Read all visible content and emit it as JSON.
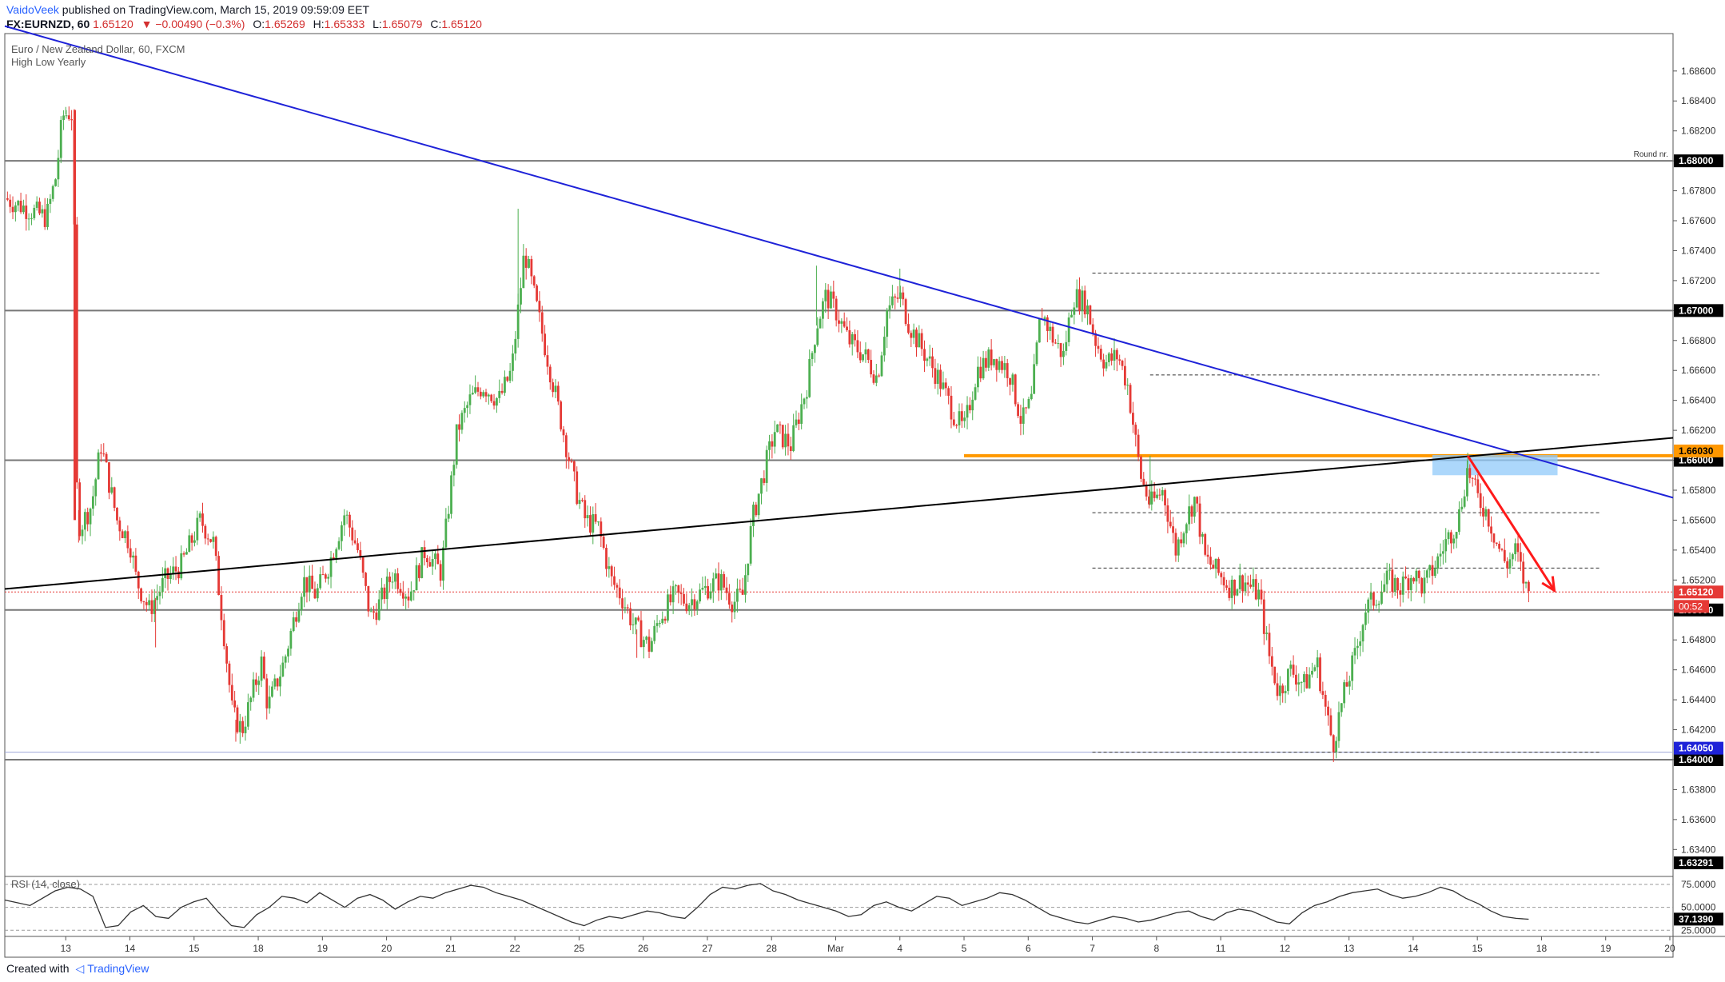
{
  "header": {
    "author": "VaidoVeek",
    "published_text": "published on TradingView.com, March 15, 2019 09:59:09 EET",
    "symbol": "FX:EURNZD, 60",
    "last": "1.65120",
    "change": "−0.00490 (−0.3%)",
    "open_label": "O:",
    "open": "1.65269",
    "high_label": "H:",
    "high": "1.65333",
    "low_label": "L:",
    "low": "1.65079",
    "close_label": "C:",
    "close": "1.65120"
  },
  "legend": {
    "title": "Euro / New Zealand Dollar, 60, FXCM",
    "indicator": "High Low Yearly"
  },
  "footer": {
    "created_with": "Created with",
    "brand": "TradingView"
  },
  "colors": {
    "up": "#4caf50",
    "down": "#e53935",
    "trendline": "#1e22d8",
    "support_line": "#000000",
    "orange_level": "#ff9800",
    "highlight_zone": "#90caf9",
    "arrow": "#ff1a1a",
    "rsi": "#333333"
  },
  "chart_data": {
    "type": "candlestick",
    "title": "Euro / New Zealand Dollar, 60, FXCM",
    "timeframe": "60",
    "y_axis": {
      "ylim": [
        1.6322,
        1.6885
      ],
      "ticks": [
        "1.68600",
        "1.68400",
        "1.68200",
        "1.68000",
        "1.67800",
        "1.67600",
        "1.67400",
        "1.67200",
        "1.67000",
        "1.66800",
        "1.66600",
        "1.66400",
        "1.66200",
        "1.66000",
        "1.65800",
        "1.65600",
        "1.65400",
        "1.65200",
        "1.65000",
        "1.64800",
        "1.64600",
        "1.64400",
        "1.64200",
        "1.64000",
        "1.63800",
        "1.63600",
        "1.63400"
      ]
    },
    "x_axis": {
      "labels": [
        "13",
        "14",
        "15",
        "18",
        "19",
        "20",
        "21",
        "22",
        "25",
        "26",
        "27",
        "28",
        "Mar",
        "4",
        "5",
        "6",
        "7",
        "8",
        "11",
        "12",
        "13",
        "14",
        "15",
        "18",
        "19",
        "20"
      ],
      "day_index": [
        0,
        1,
        2,
        3,
        4,
        5,
        6,
        7,
        8,
        9,
        10,
        11,
        12,
        13,
        14,
        15,
        16,
        17,
        18,
        19,
        20,
        21,
        22,
        23,
        24,
        25
      ],
      "range": [
        -0.95,
        25.05
      ]
    },
    "price_path": [
      [
        -0.95,
        1.6775
      ],
      [
        -0.7,
        1.677
      ],
      [
        -0.3,
        1.6762
      ],
      [
        -0.15,
        1.679
      ],
      [
        -0.05,
        1.683
      ],
      [
        0.05,
        1.6832
      ],
      [
        0.12,
        1.683
      ],
      [
        0.16,
        1.659
      ],
      [
        0.22,
        1.6555
      ],
      [
        0.4,
        1.657
      ],
      [
        0.55,
        1.661
      ],
      [
        0.8,
        1.656
      ],
      [
        1.0,
        1.6545
      ],
      [
        1.1,
        1.652
      ],
      [
        1.3,
        1.65
      ],
      [
        1.55,
        1.652
      ],
      [
        1.8,
        1.653
      ],
      [
        2.1,
        1.656
      ],
      [
        2.3,
        1.6545
      ],
      [
        2.45,
        1.649
      ],
      [
        2.6,
        1.643
      ],
      [
        2.75,
        1.642
      ],
      [
        3.05,
        1.6465
      ],
      [
        3.15,
        1.6435
      ],
      [
        3.4,
        1.6465
      ],
      [
        3.7,
        1.652
      ],
      [
        3.9,
        1.651
      ],
      [
        4.1,
        1.653
      ],
      [
        4.35,
        1.6565
      ],
      [
        4.55,
        1.654
      ],
      [
        4.75,
        1.6495
      ],
      [
        4.9,
        1.6505
      ],
      [
        5.1,
        1.6525
      ],
      [
        5.35,
        1.651
      ],
      [
        5.6,
        1.654
      ],
      [
        5.85,
        1.6525
      ],
      [
        6.1,
        1.662
      ],
      [
        6.3,
        1.664
      ],
      [
        6.5,
        1.665
      ],
      [
        6.75,
        1.664
      ],
      [
        6.95,
        1.666
      ],
      [
        7.05,
        1.67
      ],
      [
        7.15,
        1.674
      ],
      [
        7.35,
        1.67
      ],
      [
        7.6,
        1.665
      ],
      [
        7.85,
        1.66
      ],
      [
        7.95,
        1.658
      ],
      [
        8.1,
        1.656
      ],
      [
        8.3,
        1.6555
      ],
      [
        8.5,
        1.652
      ],
      [
        8.65,
        1.651
      ],
      [
        8.85,
        1.649
      ],
      [
        9.1,
        1.6475
      ],
      [
        9.25,
        1.6495
      ],
      [
        9.5,
        1.651
      ],
      [
        9.7,
        1.6505
      ],
      [
        10.0,
        1.6515
      ],
      [
        10.2,
        1.652
      ],
      [
        10.4,
        1.6505
      ],
      [
        10.55,
        1.651
      ],
      [
        10.7,
        1.656
      ],
      [
        10.9,
        1.6595
      ],
      [
        11.05,
        1.662
      ],
      [
        11.3,
        1.661
      ],
      [
        11.55,
        1.665
      ],
      [
        11.7,
        1.669
      ],
      [
        11.85,
        1.671
      ],
      [
        12.0,
        1.67
      ],
      [
        12.2,
        1.668
      ],
      [
        12.45,
        1.667
      ],
      [
        12.65,
        1.6655
      ],
      [
        12.8,
        1.67
      ],
      [
        13.0,
        1.671
      ],
      [
        13.15,
        1.669
      ],
      [
        13.4,
        1.667
      ],
      [
        13.6,
        1.6655
      ],
      [
        13.85,
        1.663
      ],
      [
        14.0,
        1.662
      ],
      [
        14.2,
        1.666
      ],
      [
        14.45,
        1.667
      ],
      [
        14.7,
        1.666
      ],
      [
        14.9,
        1.6625
      ],
      [
        15.05,
        1.664
      ],
      [
        15.2,
        1.67
      ],
      [
        15.4,
        1.668
      ],
      [
        15.55,
        1.667
      ],
      [
        15.7,
        1.671
      ],
      [
        15.9,
        1.6705
      ],
      [
        16.05,
        1.668
      ],
      [
        16.2,
        1.6665
      ],
      [
        16.4,
        1.667
      ],
      [
        16.55,
        1.665
      ],
      [
        16.65,
        1.662
      ],
      [
        16.75,
        1.659
      ],
      [
        16.9,
        1.657
      ],
      [
        17.1,
        1.658
      ],
      [
        17.3,
        1.654
      ],
      [
        17.45,
        1.656
      ],
      [
        17.6,
        1.6575
      ],
      [
        17.75,
        1.6535
      ],
      [
        17.95,
        1.6525
      ],
      [
        18.15,
        1.6515
      ],
      [
        18.35,
        1.652
      ],
      [
        18.6,
        1.651
      ],
      [
        18.75,
        1.647
      ],
      [
        18.9,
        1.6445
      ],
      [
        19.1,
        1.646
      ],
      [
        19.3,
        1.645
      ],
      [
        19.5,
        1.6465
      ],
      [
        19.65,
        1.643
      ],
      [
        19.75,
        1.641
      ],
      [
        19.9,
        1.644
      ],
      [
        20.1,
        1.647
      ],
      [
        20.25,
        1.65
      ],
      [
        20.45,
        1.651
      ],
      [
        20.6,
        1.652
      ],
      [
        20.8,
        1.6515
      ],
      [
        21.0,
        1.6525
      ],
      [
        21.15,
        1.6515
      ],
      [
        21.35,
        1.653
      ],
      [
        21.5,
        1.6545
      ],
      [
        21.7,
        1.656
      ],
      [
        21.85,
        1.6595
      ],
      [
        22.0,
        1.6575
      ],
      [
        22.15,
        1.6565
      ],
      [
        22.3,
        1.6545
      ],
      [
        22.45,
        1.653
      ],
      [
        22.6,
        1.654
      ],
      [
        22.75,
        1.6515
      ],
      [
        22.8,
        1.6512
      ]
    ],
    "swing_points": [
      {
        "x": 0.0,
        "high": 1.6836
      },
      {
        "x": 0.2,
        "low": 1.6545
      },
      {
        "x": 1.4,
        "low": 1.6475
      },
      {
        "x": 2.65,
        "low": 1.6412
      },
      {
        "x": 7.05,
        "high": 1.6768
      },
      {
        "x": 8.9,
        "low": 1.6468
      },
      {
        "x": 11.7,
        "high": 1.673
      },
      {
        "x": 13.0,
        "high": 1.6728
      },
      {
        "x": 16.9,
        "high": 1.6603
      },
      {
        "x": 19.75,
        "low": 1.6406
      },
      {
        "x": 21.85,
        "high": 1.6605
      }
    ],
    "last_candle": {
      "open": 1.65269,
      "high": 1.65333,
      "low": 1.65079,
      "close": 1.6512
    },
    "horizontal_levels": [
      {
        "price": 1.68,
        "label": "1.68000",
        "note": "Round nr.",
        "style": "solid"
      },
      {
        "price": 1.67,
        "label": "1.67000",
        "style": "solid"
      },
      {
        "price": 1.66,
        "label": "1.66000",
        "style": "solid"
      },
      {
        "price": 1.65,
        "label": "1.65000",
        "style": "solid"
      },
      {
        "price": 1.64,
        "label": "1.64000",
        "style": "solid"
      }
    ],
    "dashed_levels": [
      {
        "price": 1.6725,
        "from_x": 16.0
      },
      {
        "price": 1.6657,
        "from_x": 16.9
      },
      {
        "price": 1.6565,
        "from_x": 16.0
      },
      {
        "price": 1.6528,
        "from_x": 16.0
      },
      {
        "price": 1.6405,
        "from_x": 16.0
      }
    ],
    "orange_level": {
      "price": 1.6603,
      "label": "1.66030",
      "from_x": 14.0
    },
    "yearly_low": {
      "price": 1.6405,
      "label": "1.64050"
    },
    "last_price": {
      "price": 1.6512,
      "label": "1.65120",
      "countdown": "00:52"
    },
    "scale_bottom": {
      "label": "1.63291"
    },
    "trendline_resistance": {
      "points": [
        [
          -0.95,
          1.689
        ],
        [
          25.05,
          1.6575
        ]
      ]
    },
    "trendline_support": {
      "points": [
        [
          -0.95,
          1.6514
        ],
        [
          25.05,
          1.6615
        ]
      ]
    },
    "highlight_zone": {
      "x_from": 21.3,
      "x_to": 23.25,
      "y_from": 1.659,
      "y_to": 1.66035
    },
    "arrow": {
      "from": [
        21.85,
        1.6603
      ],
      "to": [
        23.2,
        1.6513
      ]
    },
    "rsi": {
      "label": "RSI (14, close)",
      "levels": [
        "75.0000",
        "50.0000",
        "25.0000"
      ],
      "ylim": [
        20,
        82
      ],
      "value": "37.1390",
      "values": [
        58,
        55,
        52,
        60,
        68,
        72,
        70,
        62,
        28,
        30,
        45,
        52,
        40,
        38,
        50,
        56,
        60,
        44,
        30,
        28,
        42,
        50,
        62,
        60,
        55,
        66,
        58,
        50,
        60,
        64,
        58,
        48,
        56,
        62,
        60,
        66,
        70,
        74,
        72,
        66,
        62,
        58,
        52,
        46,
        40,
        34,
        30,
        36,
        40,
        38,
        42,
        46,
        44,
        40,
        38,
        50,
        64,
        72,
        70,
        74,
        76,
        68,
        64,
        58,
        54,
        50,
        46,
        40,
        42,
        52,
        56,
        50,
        46,
        54,
        62,
        60,
        52,
        56,
        60,
        66,
        64,
        58,
        50,
        42,
        38,
        34,
        32,
        36,
        40,
        38,
        34,
        36,
        40,
        44,
        46,
        40,
        36,
        44,
        48,
        46,
        40,
        34,
        32,
        44,
        52,
        56,
        62,
        66,
        68,
        70,
        64,
        60,
        62,
        66,
        72,
        68,
        60,
        54,
        46,
        40,
        38,
        37
      ]
    }
  }
}
